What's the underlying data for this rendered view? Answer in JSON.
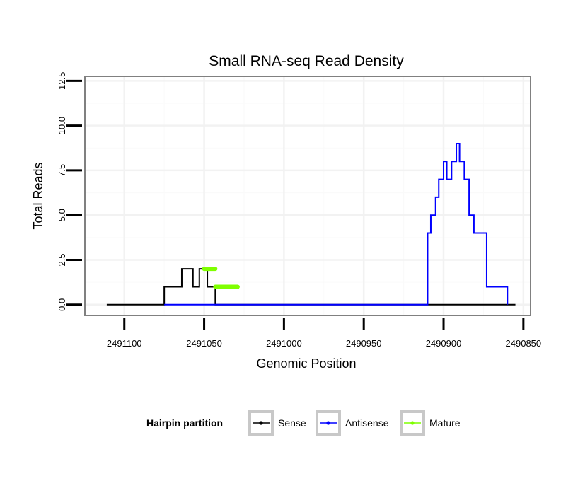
{
  "chart_data": {
    "type": "line",
    "title": "Small RNA-seq Read Density",
    "xlabel": "Genomic Position",
    "ylabel": "Total Reads",
    "xlim": [
      2491124.7,
      2490845.5
    ],
    "ylim": [
      -0.6,
      12.75
    ],
    "x_reversed": true,
    "grid": true,
    "x_ticks": [
      2491100,
      2491050,
      2491000,
      2490950,
      2490900,
      2490850
    ],
    "x_tick_labels": [
      "2491100",
      "2491050",
      "2491000",
      "2490950",
      "2490900",
      "2490850"
    ],
    "y_ticks": [
      0,
      2.5,
      5,
      7.5,
      10,
      12.5
    ],
    "y_tick_labels": [
      "0.0",
      "2.5",
      "5.0",
      "7.5",
      "10.0",
      "12.5"
    ],
    "legend": {
      "title": "Hairpin partition",
      "position": "bottom",
      "entries": [
        "Sense",
        "Antisense",
        "Mature"
      ]
    },
    "series": [
      {
        "name": "Sense",
        "color": "#000000",
        "x": [
          2491111,
          2491075,
          2491075,
          2491064,
          2491064,
          2491057,
          2491057,
          2491053,
          2491053,
          2491048,
          2491048,
          2491043,
          2491043,
          2491029,
          2491029,
          2490967,
          2490967,
          2490961,
          2490961,
          2490943,
          2490943,
          2490933,
          2490933,
          2490932,
          2490932,
          2490930,
          2490930,
          2490929,
          2490929,
          2490927,
          2490927,
          2490923,
          2490923,
          2490922,
          2490922,
          2490920,
          2490920,
          2490919,
          2490919,
          2490918,
          2490918,
          2490917,
          2490917,
          2490915,
          2490915,
          2490912,
          2490912,
          2490908,
          2490908,
          2490899,
          2490899,
          2490895,
          2490895,
          2490891,
          2490891,
          2490887,
          2490887,
          2490884,
          2490884,
          2490880,
          2490880,
          2490878,
          2490878,
          2490869,
          2490869,
          2490862,
          2490862,
          2490855
        ],
        "y": [
          0,
          0,
          1,
          1,
          2,
          2,
          1,
          1,
          2,
          2,
          1,
          1,
          0,
          0,
          0,
          0,
          0,
          0,
          0,
          0,
          0,
          0,
          0,
          0,
          0,
          0,
          0,
          0,
          0,
          0,
          0,
          0,
          0,
          0,
          0,
          0,
          0,
          0,
          0,
          0,
          0,
          0,
          0,
          0,
          0,
          0,
          0,
          0,
          0,
          0,
          0,
          0,
          0,
          0,
          0,
          0,
          0,
          0,
          0,
          0,
          0,
          0,
          0,
          0,
          0,
          0,
          0,
          0
        ]
      },
      {
        "name": "Antisense",
        "color": "#0000ff",
        "x": [
          2491075,
          2490910,
          2490910,
          2490908,
          2490908,
          2490905,
          2490905,
          2490903,
          2490903,
          2490900,
          2490900,
          2490898,
          2490898,
          2490895,
          2490895,
          2490892,
          2490892,
          2490890,
          2490890,
          2490887,
          2490887,
          2490884,
          2490884,
          2490881,
          2490881,
          2490878,
          2490878,
          2490876,
          2490876,
          2490873,
          2490873,
          2490870,
          2490870,
          2490868,
          2490868,
          2490865,
          2490865,
          2490860,
          2490860
        ],
        "y": [
          0,
          0,
          4,
          4,
          5,
          5,
          6,
          6,
          7,
          7,
          8,
          8,
          7,
          7,
          8,
          8,
          9,
          9,
          8,
          8,
          7,
          7,
          5,
          5,
          4,
          4,
          4,
          4,
          4,
          4,
          1,
          1,
          1,
          1,
          1,
          1,
          1,
          1,
          0
        ]
      },
      {
        "name": "Mature",
        "color": "#7fff00",
        "segments": [
          {
            "x": [
              2491050,
              2491043
            ],
            "y": [
              2,
              2
            ]
          },
          {
            "x": [
              2491043,
              2491029
            ],
            "y": [
              1,
              1
            ]
          }
        ]
      }
    ]
  }
}
